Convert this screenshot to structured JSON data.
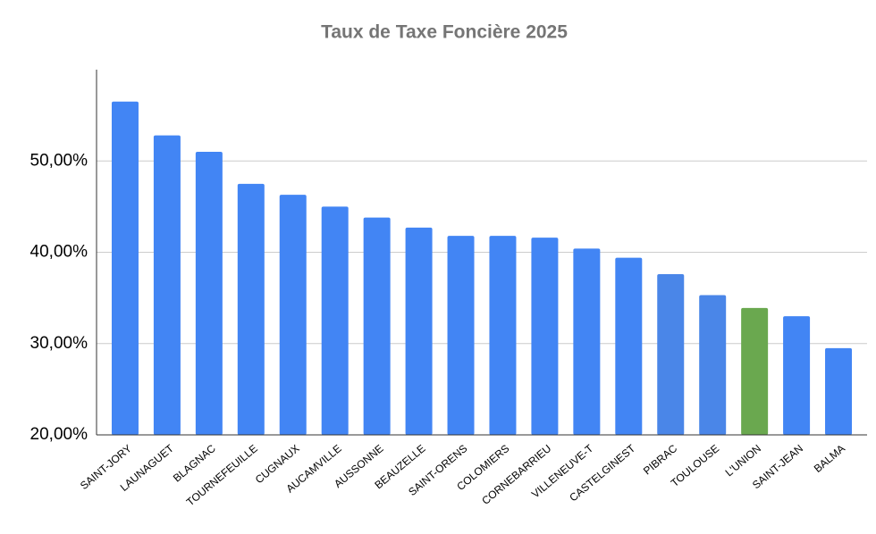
{
  "chart_data": {
    "type": "bar",
    "title": "Taux de Taxe Foncière 2025",
    "categories": [
      "SAINT-JORY",
      "LAUNAGUET",
      "BLAGNAC",
      "TOURNEFEUILLE",
      "CUGNAUX",
      "AUCAMVILLE",
      "AUSSONNE",
      "BEAUZELLE",
      "SAINT-ORENS",
      "COLOMIERS",
      "CORNEBARRIEU",
      "VILLENEUVE-T",
      "CASTELGINEST",
      "PIBRAC",
      "TOULOUSE",
      "L'UNION",
      "SAINT-JEAN",
      "BALMA"
    ],
    "values": [
      56.5,
      52.8,
      51.0,
      47.5,
      46.3,
      45.0,
      43.8,
      42.7,
      41.8,
      41.8,
      41.6,
      40.4,
      39.4,
      37.6,
      35.3,
      33.9,
      33.0,
      29.5
    ],
    "colors": [
      "#4285f4",
      "#4285f4",
      "#4285f4",
      "#4285f4",
      "#4285f4",
      "#4285f4",
      "#4285f4",
      "#4285f4",
      "#4285f4",
      "#4285f4",
      "#4285f4",
      "#4285f4",
      "#4285f4",
      "#4a86e8",
      "#4a86e8",
      "#6aa84f",
      "#4285f4",
      "#4285f4"
    ],
    "ylim": [
      20,
      60
    ],
    "yticks": [
      {
        "value": 20,
        "label": "20,00%"
      },
      {
        "value": 30,
        "label": "30,00%"
      },
      {
        "value": 40,
        "label": "40,00%"
      },
      {
        "value": 50,
        "label": "50,00%"
      }
    ],
    "grid": true
  }
}
